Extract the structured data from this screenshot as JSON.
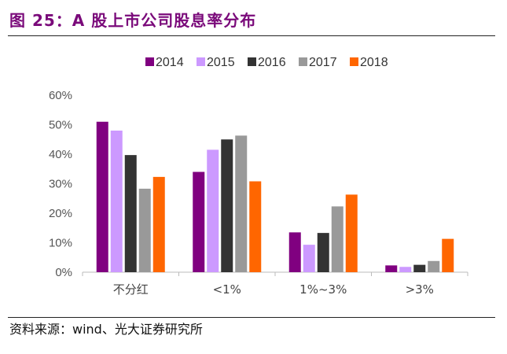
{
  "header": {
    "title": "图 25：A 股上市公司股息率分布"
  },
  "footer": {
    "source": "资料来源：wind、光大证券研究所"
  },
  "chart_data": {
    "type": "bar",
    "categories": [
      "不分红",
      "<1%",
      "1%~3%",
      ">3%"
    ],
    "series": [
      {
        "name": "2014",
        "color": "#800080",
        "values": [
          51,
          34,
          13.5,
          2.3
        ]
      },
      {
        "name": "2015",
        "color": "#cc99ff",
        "values": [
          48,
          41.5,
          9.3,
          1.8
        ]
      },
      {
        "name": "2016",
        "color": "#333333",
        "values": [
          39.7,
          45,
          13.3,
          2.5
        ]
      },
      {
        "name": "2017",
        "color": "#999999",
        "values": [
          28.3,
          46.3,
          22.3,
          3.8
        ]
      },
      {
        "name": "2018",
        "color": "#ff6600",
        "values": [
          32.3,
          30.8,
          26.3,
          11.3
        ]
      }
    ],
    "y_ticks": [
      "0%",
      "10%",
      "20%",
      "30%",
      "40%",
      "50%",
      "60%"
    ],
    "ylim": [
      0,
      60
    ],
    "legend": "top",
    "grid": false
  }
}
